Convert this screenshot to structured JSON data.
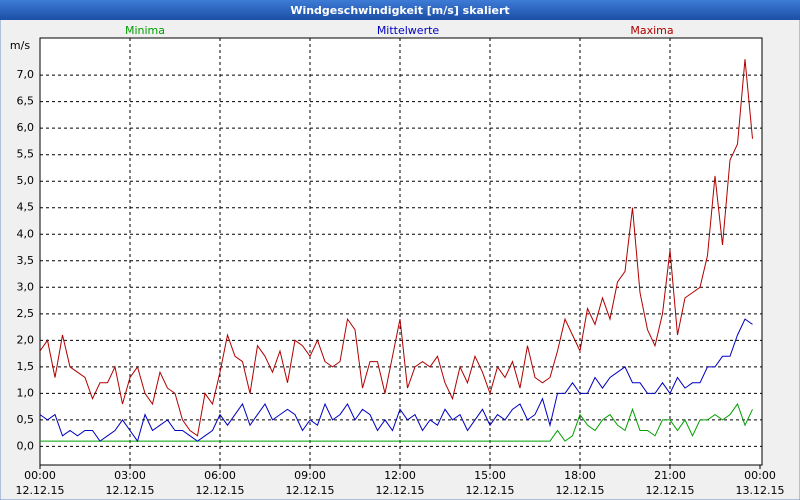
{
  "chart_data": {
    "type": "line",
    "title": "Windgeschwindigkeit [m/s] skaliert",
    "y_unit": "m/s",
    "x": [
      0,
      0.25,
      0.5,
      0.75,
      1,
      1.25,
      1.5,
      1.75,
      2,
      2.25,
      2.5,
      2.75,
      3,
      3.25,
      3.5,
      3.75,
      4,
      4.25,
      4.5,
      4.75,
      5,
      5.25,
      5.5,
      5.75,
      6,
      6.25,
      6.5,
      6.75,
      7,
      7.25,
      7.5,
      7.75,
      8,
      8.25,
      8.5,
      8.75,
      9,
      9.25,
      9.5,
      9.75,
      10,
      10.25,
      10.5,
      10.75,
      11,
      11.25,
      11.5,
      11.75,
      12,
      12.25,
      12.5,
      12.75,
      13,
      13.25,
      13.5,
      13.75,
      14,
      14.25,
      14.5,
      14.75,
      15,
      15.25,
      15.5,
      15.75,
      16,
      16.25,
      16.5,
      16.75,
      17,
      17.25,
      17.5,
      17.75,
      18,
      18.25,
      18.5,
      18.75,
      19,
      19.25,
      19.5,
      19.75,
      20,
      20.25,
      20.5,
      20.75,
      21,
      21.25,
      21.5,
      21.75,
      22,
      22.25,
      22.5,
      22.75,
      23,
      23.25,
      23.5,
      23.75
    ],
    "series": [
      {
        "name": "Minima",
        "color": "#00a000",
        "values": [
          0.1,
          0.1,
          0.1,
          0.1,
          0.1,
          0.1,
          0.1,
          0.1,
          0.1,
          0.1,
          0.1,
          0.1,
          0.1,
          0.1,
          0.1,
          0.1,
          0.1,
          0.1,
          0.1,
          0.1,
          0.1,
          0.1,
          0.1,
          0.1,
          0.1,
          0.1,
          0.1,
          0.1,
          0.1,
          0.1,
          0.1,
          0.1,
          0.1,
          0.1,
          0.1,
          0.1,
          0.1,
          0.1,
          0.1,
          0.1,
          0.1,
          0.1,
          0.1,
          0.1,
          0.1,
          0.1,
          0.1,
          0.1,
          0.1,
          0.1,
          0.1,
          0.1,
          0.1,
          0.1,
          0.1,
          0.1,
          0.1,
          0.1,
          0.1,
          0.1,
          0.1,
          0.1,
          0.1,
          0.1,
          0.1,
          0.1,
          0.1,
          0.1,
          0.1,
          0.3,
          0.1,
          0.2,
          0.6,
          0.4,
          0.3,
          0.5,
          0.6,
          0.4,
          0.3,
          0.7,
          0.3,
          0.3,
          0.2,
          0.5,
          0.5,
          0.3,
          0.5,
          0.2,
          0.5,
          0.5,
          0.6,
          0.5,
          0.6,
          0.8,
          0.4,
          0.7
        ]
      },
      {
        "name": "Mittelwerte",
        "color": "#0000c0",
        "values": [
          0.6,
          0.5,
          0.6,
          0.2,
          0.3,
          0.2,
          0.3,
          0.3,
          0.1,
          0.2,
          0.3,
          0.5,
          0.3,
          0.1,
          0.6,
          0.3,
          0.4,
          0.5,
          0.3,
          0.3,
          0.2,
          0.1,
          0.2,
          0.3,
          0.6,
          0.4,
          0.6,
          0.8,
          0.4,
          0.6,
          0.8,
          0.5,
          0.6,
          0.7,
          0.6,
          0.3,
          0.5,
          0.4,
          0.8,
          0.5,
          0.6,
          0.8,
          0.5,
          0.7,
          0.6,
          0.3,
          0.5,
          0.3,
          0.7,
          0.5,
          0.6,
          0.3,
          0.5,
          0.4,
          0.7,
          0.5,
          0.6,
          0.3,
          0.5,
          0.7,
          0.4,
          0.6,
          0.5,
          0.7,
          0.8,
          0.5,
          0.6,
          0.9,
          0.4,
          1.0,
          1.0,
          1.2,
          1.0,
          1.0,
          1.3,
          1.1,
          1.3,
          1.4,
          1.5,
          1.2,
          1.2,
          1.0,
          1.0,
          1.2,
          1.0,
          1.3,
          1.1,
          1.2,
          1.2,
          1.5,
          1.5,
          1.7,
          1.7,
          2.1,
          2.4,
          2.3
        ]
      },
      {
        "name": "Maxima",
        "color": "#b00000",
        "values": [
          1.8,
          2.0,
          1.3,
          2.1,
          1.5,
          1.4,
          1.3,
          0.9,
          1.2,
          1.2,
          1.5,
          0.8,
          1.3,
          1.5,
          1.0,
          0.8,
          1.4,
          1.1,
          1.0,
          0.5,
          0.3,
          0.2,
          1.0,
          0.8,
          1.4,
          2.1,
          1.7,
          1.6,
          1.0,
          1.9,
          1.7,
          1.4,
          1.8,
          1.2,
          2.0,
          1.9,
          1.7,
          2.0,
          1.6,
          1.5,
          1.6,
          2.4,
          2.2,
          1.1,
          1.6,
          1.6,
          1.0,
          1.7,
          2.4,
          1.1,
          1.5,
          1.6,
          1.5,
          1.7,
          1.2,
          0.9,
          1.5,
          1.2,
          1.7,
          1.4,
          1.0,
          1.5,
          1.3,
          1.6,
          1.1,
          1.9,
          1.3,
          1.2,
          1.3,
          1.8,
          2.4,
          2.1,
          1.8,
          2.6,
          2.3,
          2.8,
          2.4,
          3.1,
          3.3,
          4.5,
          2.9,
          2.2,
          1.9,
          2.5,
          3.7,
          2.1,
          2.8,
          2.9,
          3.0,
          3.6,
          5.1,
          3.8,
          5.4,
          5.7,
          7.3,
          5.8
        ]
      }
    ],
    "xlim": [
      0,
      24
    ],
    "xticks": [
      {
        "value": 0,
        "label": "00:00"
      },
      {
        "value": 3,
        "label": "03:00"
      },
      {
        "value": 6,
        "label": "06:00"
      },
      {
        "value": 9,
        "label": "09:00"
      },
      {
        "value": 12,
        "label": "12:00"
      },
      {
        "value": 15,
        "label": "15:00"
      },
      {
        "value": 18,
        "label": "18:00"
      },
      {
        "value": 21,
        "label": "21:00"
      },
      {
        "value": 24,
        "label": "00:00"
      }
    ],
    "xtick_dates": [
      "12.12.15",
      "12.12.15",
      "12.12.15",
      "12.12.15",
      "12.12.15",
      "12.12.15",
      "12.12.15",
      "12.12.15",
      "13.12.15"
    ],
    "ylim": [
      -0.35,
      7.7
    ],
    "yticks": [
      {
        "value": 0,
        "label": "0,0"
      },
      {
        "value": 0.5,
        "label": "0,5"
      },
      {
        "value": 1,
        "label": "1,0"
      },
      {
        "value": 1.5,
        "label": "1,5"
      },
      {
        "value": 2,
        "label": "2,0"
      },
      {
        "value": 2.5,
        "label": "2,5"
      },
      {
        "value": 3,
        "label": "3,0"
      },
      {
        "value": 3.5,
        "label": "3,5"
      },
      {
        "value": 4,
        "label": "4,0"
      },
      {
        "value": 4.5,
        "label": "4,5"
      },
      {
        "value": 5,
        "label": "5,0"
      },
      {
        "value": 5.5,
        "label": "5,5"
      },
      {
        "value": 6,
        "label": "6,0"
      },
      {
        "value": 6.5,
        "label": "6,5"
      },
      {
        "value": 7,
        "label": "7,0"
      }
    ],
    "grid": true
  }
}
